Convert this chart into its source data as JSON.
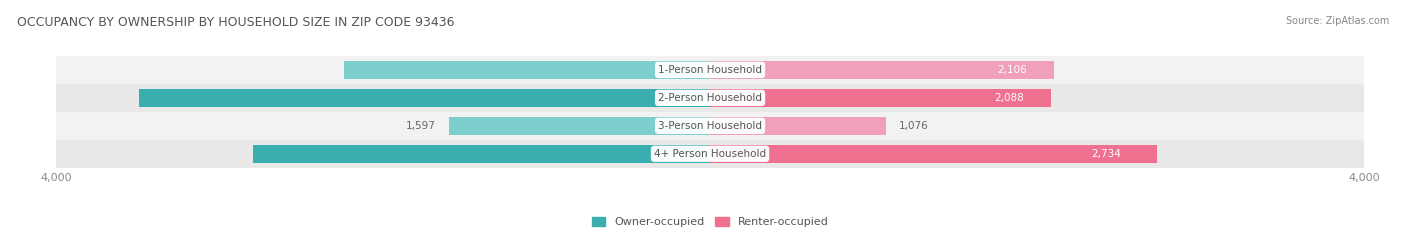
{
  "title": "OCCUPANCY BY OWNERSHIP BY HOUSEHOLD SIZE IN ZIP CODE 93436",
  "source": "Source: ZipAtlas.com",
  "categories": [
    "1-Person Household",
    "2-Person Household",
    "3-Person Household",
    "4+ Person Household"
  ],
  "owner_values": [
    2239,
    3495,
    1597,
    2797
  ],
  "renter_values": [
    2106,
    2088,
    1076,
    2734
  ],
  "x_max": 4000,
  "owner_color_dark": "#3AAEAE",
  "owner_color_light": "#7ECECE",
  "renter_color_dark": "#F07090",
  "renter_color_light": "#F0A0B8",
  "row_bg_colors": [
    "#F2F2F2",
    "#E8E8E8",
    "#F2F2F2",
    "#E8E8E8"
  ],
  "title_color": "#555555",
  "source_color": "#888888",
  "label_inside_color": "#FFFFFF",
  "label_outside_color": "#666666",
  "center_label_color": "#555555",
  "axis_tick_color": "#888888",
  "figsize": [
    14.06,
    2.33
  ],
  "dpi": 100
}
